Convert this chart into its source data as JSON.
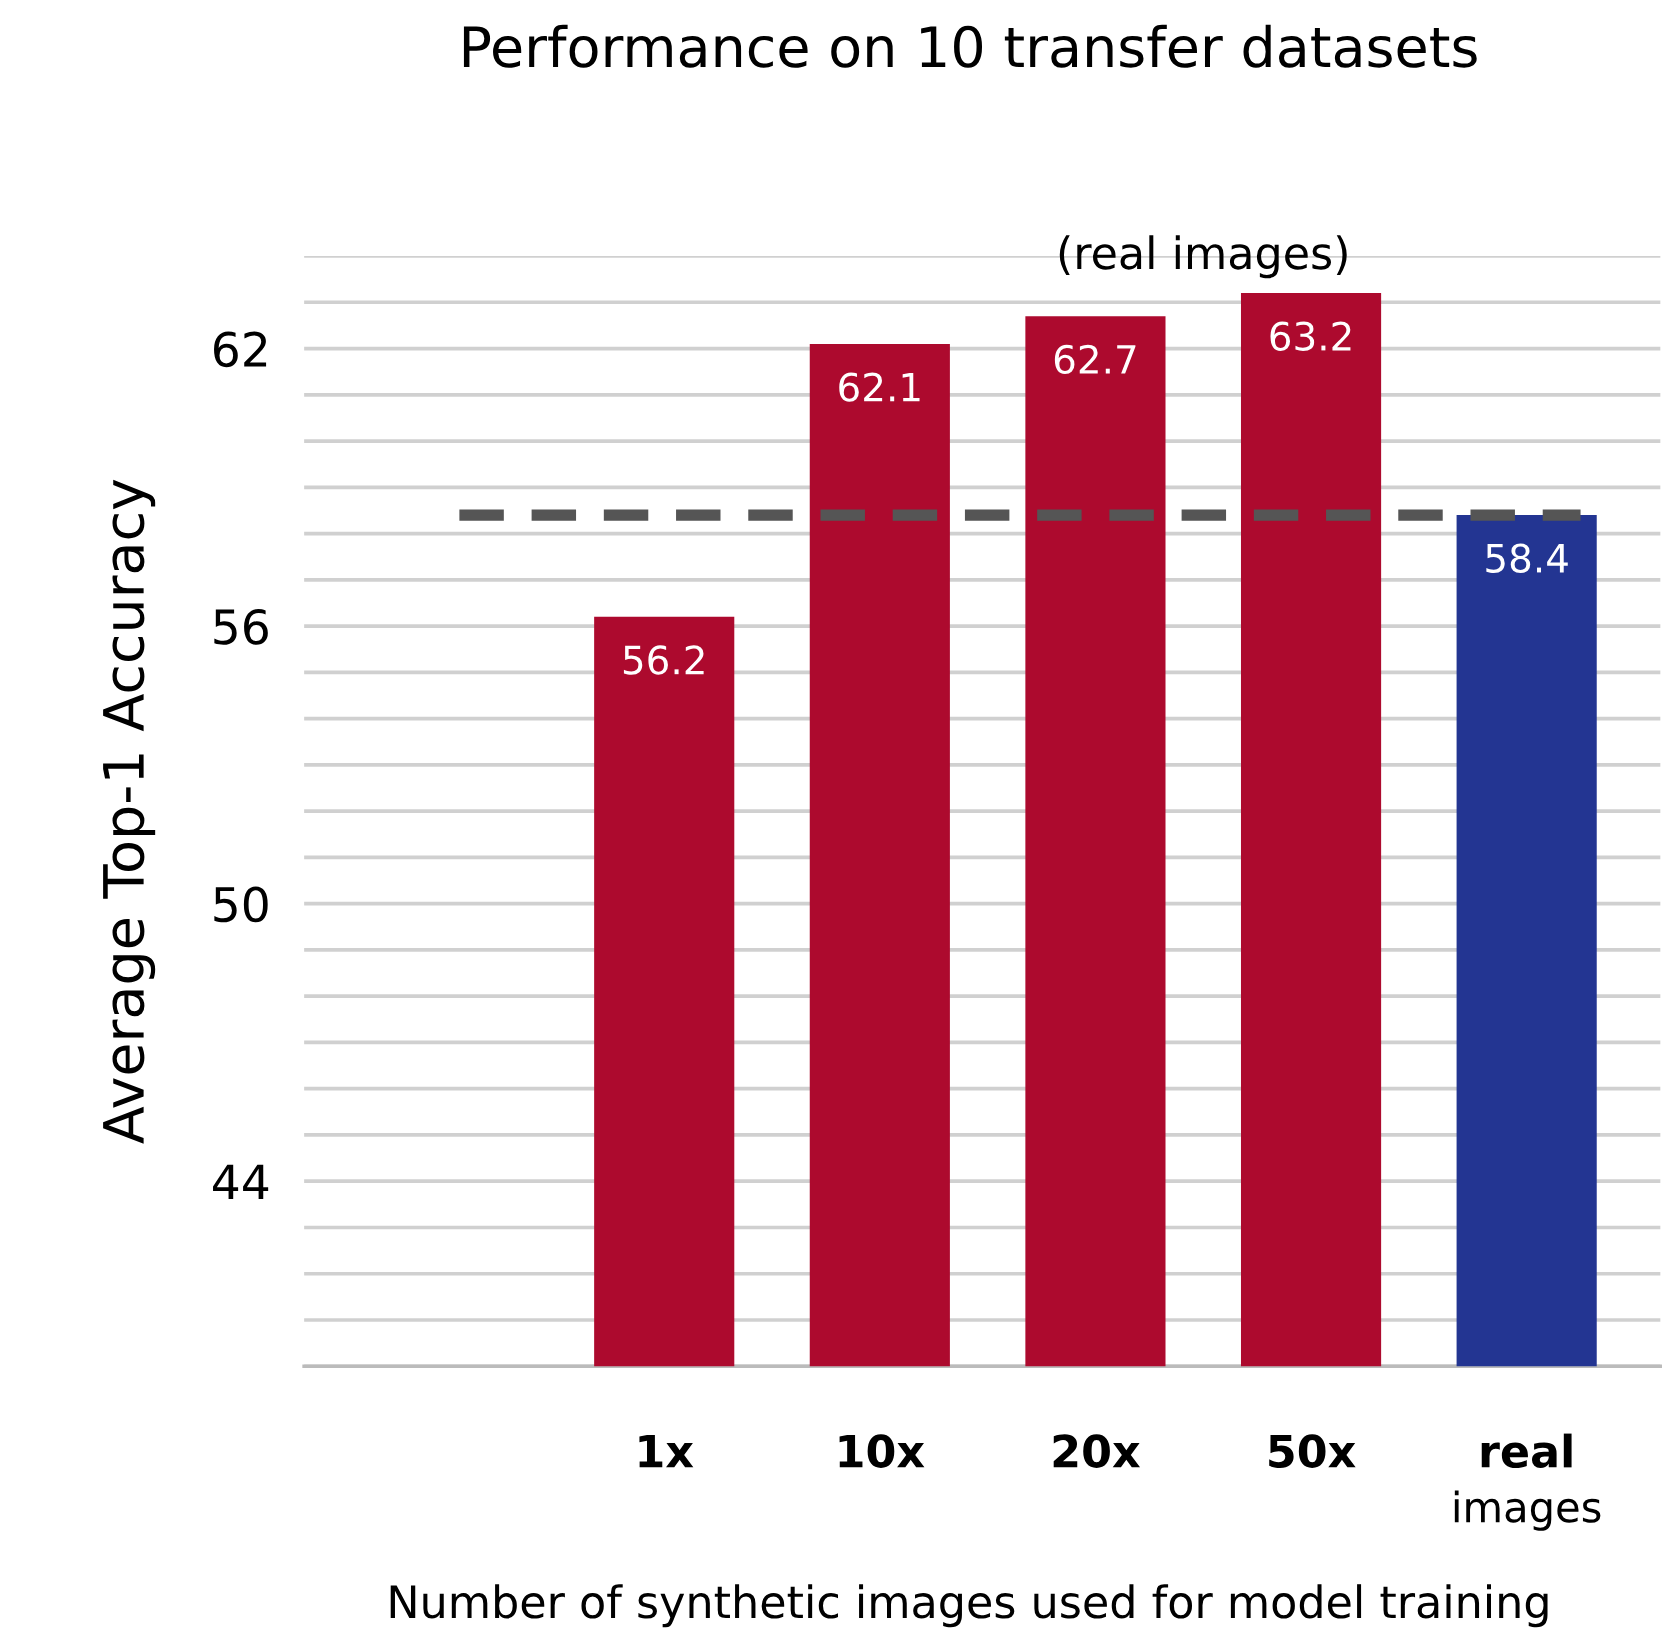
{
  "chart_data": {
    "type": "bar",
    "title": "Performance on 10 transfer datasets",
    "xlabel": "Number of synthetic images used for model training",
    "ylabel": "Average Top-1 Accuracy",
    "categories": [
      "1x",
      "10x",
      "20x",
      "50x",
      "real images"
    ],
    "values": [
      56.2,
      62.1,
      62.7,
      63.2,
      58.4
    ],
    "colors": [
      "#ad0a2e",
      "#ad0a2e",
      "#ad0a2e",
      "#ad0a2e",
      "#233592"
    ],
    "data_labels": true,
    "ylim": [
      40,
      64
    ],
    "yticks": [
      {
        "value": 40,
        "label": null
      },
      {
        "value": 41,
        "label": null
      },
      {
        "value": 42,
        "label": null
      },
      {
        "value": 43,
        "label": null
      },
      44,
      {
        "value": 45,
        "label": null
      },
      {
        "value": 46,
        "label": null
      },
      {
        "value": 47,
        "label": null
      },
      {
        "value": 48,
        "label": null
      },
      {
        "value": 49,
        "label": null
      },
      50,
      {
        "value": 51,
        "label": null
      },
      {
        "value": 52,
        "label": null
      },
      {
        "value": 53,
        "label": null
      },
      {
        "value": 54,
        "label": null
      },
      {
        "value": 55,
        "label": null
      },
      56,
      {
        "value": 57,
        "label": null
      },
      {
        "value": 58,
        "label": null
      },
      {
        "value": 59,
        "label": null
      },
      {
        "value": 60,
        "label": null
      },
      {
        "value": 61,
        "label": null
      },
      62,
      {
        "value": 63,
        "label": null
      },
      {
        "value": 64,
        "label": null
      }
    ],
    "grid": "y",
    "annotations": [
      "(real images)"
    ],
    "ref_lines": [
      {
        "axis": "y",
        "value": 58.4,
        "color": "#555555",
        "line_style": "dashed"
      }
    ]
  }
}
